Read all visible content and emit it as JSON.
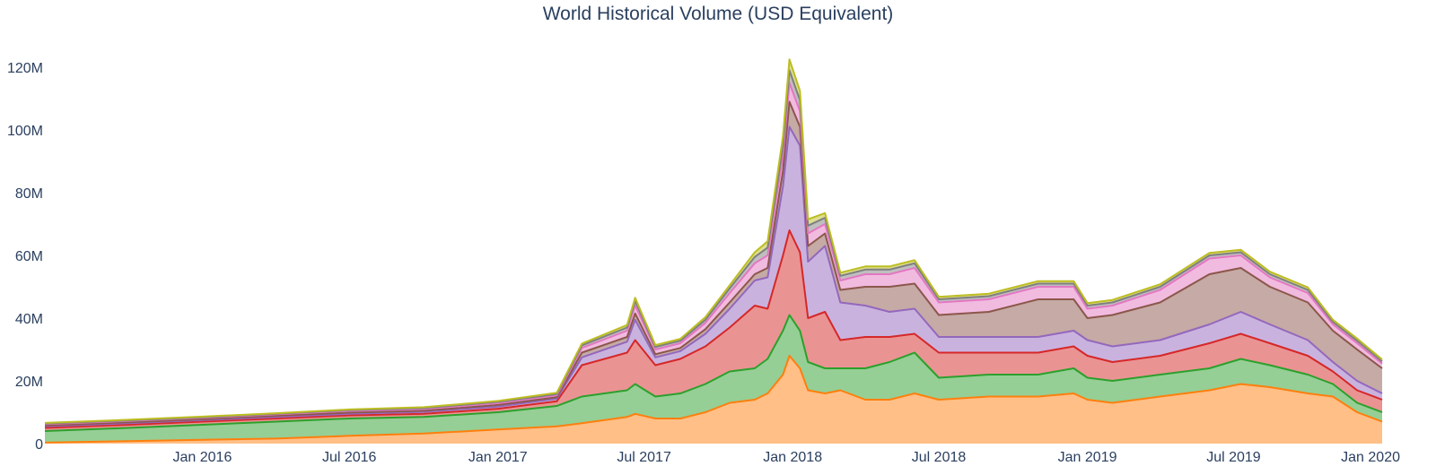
{
  "chart_data": {
    "type": "area",
    "title": "World Historical Volume (USD Equivalent)",
    "xlabel": "",
    "ylabel": "",
    "stacked": true,
    "xlim": [
      "2015-06-20",
      "2020-01-01"
    ],
    "ylim": [
      0,
      130000000
    ],
    "y_ticks": [
      0,
      20000000,
      40000000,
      60000000,
      80000000,
      100000000,
      120000000
    ],
    "y_tick_labels": [
      "0",
      "20M",
      "40M",
      "60M",
      "80M",
      "100M",
      "120M"
    ],
    "x_ticks": [
      "2016-01-01",
      "2016-07-01",
      "2017-01-01",
      "2017-07-01",
      "2018-01-01",
      "2018-07-01",
      "2019-01-01",
      "2019-07-01",
      "2020-01-01"
    ],
    "x_tick_labels": [
      "Jan 2016",
      "Jul 2016",
      "Jan 2017",
      "Jul 2017",
      "Jan 2018",
      "Jul 2018",
      "Jan 2019",
      "Jul 2019",
      "Jan 2020"
    ],
    "grid": false,
    "legend": "none",
    "x": [
      "2015-06-20",
      "2015-10-01",
      "2016-01-01",
      "2016-04-01",
      "2016-07-01",
      "2016-10-01",
      "2017-01-01",
      "2017-03-15",
      "2017-04-15",
      "2017-06-10",
      "2017-06-20",
      "2017-07-15",
      "2017-08-15",
      "2017-09-15",
      "2017-10-15",
      "2017-11-15",
      "2017-12-01",
      "2017-12-20",
      "2017-12-28",
      "2018-01-10",
      "2018-01-20",
      "2018-02-10",
      "2018-03-01",
      "2018-04-01",
      "2018-05-01",
      "2018-06-01",
      "2018-07-01",
      "2018-09-01",
      "2018-11-01",
      "2018-12-15",
      "2019-01-01",
      "2019-02-01",
      "2019-04-01",
      "2019-06-01",
      "2019-07-10",
      "2019-08-15",
      "2019-10-01",
      "2019-11-01",
      "2019-12-01",
      "2020-01-01"
    ],
    "series": [
      {
        "color": "#ff7f0e",
        "values": [
          0.3,
          0.8,
          1.2,
          1.6,
          2.5,
          3.2,
          4.5,
          5.5,
          6.5,
          8.5,
          9.5,
          8,
          8,
          10,
          13,
          14,
          16,
          22,
          28,
          24,
          17,
          16,
          17,
          14,
          14,
          16,
          14,
          15,
          15,
          16,
          14,
          13,
          15,
          17,
          19,
          18,
          16,
          15,
          10,
          7
        ]
      },
      {
        "color": "#2ca02c",
        "values": [
          3.7,
          4.2,
          4.8,
          5.4,
          5.5,
          5.3,
          5.5,
          6.5,
          8.5,
          8.5,
          9.5,
          7,
          8,
          9,
          10,
          10,
          11,
          14,
          13,
          12,
          9,
          8,
          7,
          10,
          12,
          13,
          7,
          7,
          7,
          8,
          7,
          7,
          7,
          7,
          8,
          7,
          6,
          4,
          3,
          3
        ]
      },
      {
        "color": "#d62728",
        "values": [
          1.0,
          1.0,
          1.0,
          1.0,
          1.0,
          1.0,
          1.1,
          1.5,
          10,
          12,
          14,
          10,
          11,
          12,
          14,
          20,
          16,
          24,
          27,
          25,
          14,
          18,
          9,
          10,
          8,
          6,
          8,
          7,
          7,
          7,
          7,
          6,
          6,
          8,
          8,
          7,
          6,
          4,
          4,
          4
        ]
      },
      {
        "color": "#9467bd",
        "values": [
          0.5,
          0.5,
          0.5,
          0.5,
          0.5,
          0.6,
          0.7,
          0.8,
          2.5,
          3.5,
          6.5,
          2.5,
          2.5,
          4,
          6,
          8,
          10,
          22,
          33,
          34,
          18,
          21,
          12,
          10,
          8,
          8,
          5,
          5,
          5,
          5,
          5,
          5,
          5,
          6,
          7,
          6,
          5,
          3,
          3,
          2
        ]
      },
      {
        "color": "#8c564b",
        "values": [
          0.3,
          0.3,
          0.3,
          0.4,
          0.4,
          0.4,
          0.5,
          0.5,
          1.5,
          1.5,
          2,
          1,
          1,
          1.5,
          2,
          2,
          3,
          5,
          8,
          6,
          5,
          4,
          4,
          6,
          8,
          8,
          7,
          8,
          12,
          10,
          7,
          10,
          12,
          16,
          14,
          12,
          12,
          10,
          10,
          8
        ]
      },
      {
        "color": "#e377c2",
        "values": [
          0.4,
          0.4,
          0.4,
          0.4,
          0.5,
          0.5,
          0.6,
          0.6,
          1.5,
          2,
          2.5,
          1.5,
          1.5,
          2,
          3,
          3.5,
          4,
          5,
          6,
          5,
          4,
          3,
          3,
          4,
          4,
          5,
          4,
          4,
          4,
          4,
          3,
          3,
          4,
          5,
          4,
          3,
          3,
          2,
          2,
          1.5
        ]
      },
      {
        "color": "#7f7f7f",
        "values": [
          0.2,
          0.2,
          0.2,
          0.2,
          0.3,
          0.3,
          0.4,
          0.4,
          0.8,
          1,
          1.5,
          0.8,
          0.8,
          1,
          1.5,
          2,
          2.5,
          3,
          4,
          3.5,
          2.5,
          2,
          1.5,
          1.5,
          1.5,
          1.5,
          1,
          1,
          1,
          1,
          1,
          1,
          1,
          1,
          1,
          1,
          1,
          0.8,
          0.8,
          0.7
        ]
      },
      {
        "color": "#bcbd22",
        "values": [
          0.2,
          0.2,
          0.2,
          0.2,
          0.2,
          0.3,
          0.3,
          0.4,
          0.6,
          0.8,
          1,
          0.6,
          0.6,
          0.8,
          1,
          1.5,
          2,
          3,
          3.5,
          3,
          2,
          1.5,
          1,
          1,
          1,
          1,
          0.8,
          0.8,
          0.8,
          0.8,
          0.8,
          0.8,
          0.8,
          0.8,
          0.8,
          0.8,
          0.8,
          0.7,
          0.7,
          0.6
        ]
      }
    ]
  }
}
